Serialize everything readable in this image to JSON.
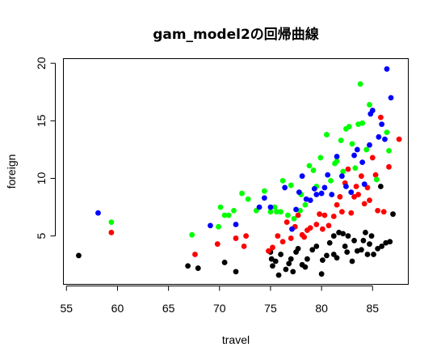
{
  "chart_data": {
    "type": "scatter",
    "title": "gam_model2の回帰曲線",
    "xlabel": "travel",
    "ylabel": "foreign",
    "xlim": [
      54.7,
      88.5
    ],
    "ylim": [
      0.8,
      20.4
    ],
    "xticks": [
      "55",
      "60",
      "65",
      "70",
      "75",
      "80",
      "85"
    ],
    "yticks": [
      "5",
      "10",
      "15",
      "20"
    ],
    "grid": false,
    "legend": "none",
    "series": [
      {
        "color": "#000000",
        "points": [
          [
            56.2,
            3.3
          ],
          [
            66.9,
            2.4
          ],
          [
            67.9,
            2.2
          ],
          [
            70.5,
            2.7
          ],
          [
            71.6,
            1.9
          ],
          [
            75.0,
            3.6
          ],
          [
            75.1,
            3.0
          ],
          [
            75.2,
            2.4
          ],
          [
            75.5,
            2.8
          ],
          [
            75.8,
            1.6
          ],
          [
            76.0,
            3.4
          ],
          [
            76.5,
            2.1
          ],
          [
            76.8,
            2.6
          ],
          [
            77.0,
            3.0
          ],
          [
            77.2,
            1.9
          ],
          [
            77.5,
            3.6
          ],
          [
            77.7,
            3.9
          ],
          [
            78.1,
            2.5
          ],
          [
            78.4,
            2.3
          ],
          [
            78.6,
            3.0
          ],
          [
            79.1,
            3.8
          ],
          [
            79.5,
            4.1
          ],
          [
            80.1,
            2.9
          ],
          [
            80.0,
            1.7
          ],
          [
            80.5,
            3.3
          ],
          [
            80.8,
            4.4
          ],
          [
            81.2,
            3.4
          ],
          [
            81.5,
            3.1
          ],
          [
            81.2,
            5.0
          ],
          [
            81.7,
            5.3
          ],
          [
            82.1,
            5.2
          ],
          [
            82.3,
            4.1
          ],
          [
            82.5,
            3.6
          ],
          [
            82.6,
            5.0
          ],
          [
            83.0,
            2.8
          ],
          [
            83.2,
            4.6
          ],
          [
            83.5,
            3.7
          ],
          [
            83.9,
            3.8
          ],
          [
            84.1,
            4.6
          ],
          [
            84.3,
            5.3
          ],
          [
            84.5,
            3.4
          ],
          [
            84.7,
            4.3
          ],
          [
            84.9,
            5.0
          ],
          [
            85.1,
            3.4
          ],
          [
            85.5,
            3.9
          ],
          [
            85.8,
            9.3
          ],
          [
            85.9,
            4.1
          ],
          [
            86.3,
            4.4
          ],
          [
            86.7,
            4.5
          ],
          [
            87.0,
            6.9
          ]
        ]
      },
      {
        "color": "#ff0000",
        "points": [
          [
            59.4,
            5.3
          ],
          [
            67.6,
            3.4
          ],
          [
            69.8,
            4.3
          ],
          [
            71.6,
            4.8
          ],
          [
            72.4,
            4.1
          ],
          [
            72.6,
            5.0
          ],
          [
            74.8,
            3.7
          ],
          [
            75.2,
            4.0
          ],
          [
            75.7,
            5.0
          ],
          [
            76.2,
            4.5
          ],
          [
            76.6,
            6.2
          ],
          [
            77.0,
            4.8
          ],
          [
            77.4,
            5.8
          ],
          [
            77.7,
            6.8
          ],
          [
            78.1,
            5.1
          ],
          [
            78.3,
            4.9
          ],
          [
            78.6,
            5.5
          ],
          [
            78.9,
            5.7
          ],
          [
            79.5,
            6.0
          ],
          [
            79.8,
            6.9
          ],
          [
            80.1,
            5.6
          ],
          [
            80.3,
            6.8
          ],
          [
            80.7,
            5.9
          ],
          [
            81.2,
            6.7
          ],
          [
            81.5,
            7.7
          ],
          [
            81.8,
            8.4
          ],
          [
            82.0,
            7.1
          ],
          [
            82.3,
            9.6
          ],
          [
            82.6,
            10.8
          ],
          [
            82.9,
            7.0
          ],
          [
            83.2,
            8.4
          ],
          [
            83.4,
            9.3
          ],
          [
            83.6,
            8.6
          ],
          [
            83.9,
            10.2
          ],
          [
            84.2,
            7.8
          ],
          [
            84.5,
            9.2
          ],
          [
            84.7,
            8.1
          ],
          [
            85.0,
            11.8
          ],
          [
            85.3,
            10.3
          ],
          [
            85.5,
            7.2
          ],
          [
            85.8,
            15.3
          ],
          [
            86.1,
            7.1
          ],
          [
            86.6,
            11.0
          ],
          [
            87.6,
            13.4
          ]
        ]
      },
      {
        "color": "#00ff00",
        "points": [
          [
            59.4,
            6.2
          ],
          [
            67.3,
            5.1
          ],
          [
            69.9,
            5.8
          ],
          [
            70.1,
            7.5
          ],
          [
            70.5,
            6.8
          ],
          [
            70.9,
            6.8
          ],
          [
            71.4,
            7.2
          ],
          [
            72.2,
            8.7
          ],
          [
            72.8,
            8.2
          ],
          [
            73.6,
            7.2
          ],
          [
            74.4,
            8.9
          ],
          [
            75.0,
            7.1
          ],
          [
            75.4,
            7.5
          ],
          [
            75.6,
            7.1
          ],
          [
            76.0,
            7.1
          ],
          [
            76.2,
            9.8
          ],
          [
            76.7,
            6.8
          ],
          [
            77.0,
            9.4
          ],
          [
            77.3,
            6.5
          ],
          [
            77.9,
            7.2
          ],
          [
            78.0,
            8.6
          ],
          [
            78.4,
            7.7
          ],
          [
            78.8,
            11.1
          ],
          [
            79.2,
            10.7
          ],
          [
            79.5,
            9.3
          ],
          [
            79.9,
            11.8
          ],
          [
            80.5,
            13.8
          ],
          [
            80.9,
            9.8
          ],
          [
            81.3,
            11.3
          ],
          [
            81.5,
            11.5
          ],
          [
            81.9,
            13.3
          ],
          [
            82.1,
            10.6
          ],
          [
            82.4,
            14.3
          ],
          [
            82.7,
            14.5
          ],
          [
            83.0,
            13.0
          ],
          [
            83.3,
            10.9
          ],
          [
            83.6,
            14.7
          ],
          [
            83.8,
            18.2
          ],
          [
            84.0,
            14.8
          ],
          [
            84.4,
            12.5
          ],
          [
            84.7,
            16.4
          ],
          [
            85.4,
            9.9
          ],
          [
            86.4,
            14.0
          ],
          [
            86.6,
            12.4
          ]
        ]
      },
      {
        "color": "#0000ff",
        "points": [
          [
            58.1,
            7.0
          ],
          [
            69.1,
            5.9
          ],
          [
            71.6,
            6.0
          ],
          [
            73.9,
            7.5
          ],
          [
            74.4,
            8.3
          ],
          [
            75.0,
            7.5
          ],
          [
            76.4,
            9.2
          ],
          [
            77.1,
            5.6
          ],
          [
            77.5,
            7.3
          ],
          [
            77.8,
            8.8
          ],
          [
            78.1,
            10.2
          ],
          [
            78.5,
            8.2
          ],
          [
            78.9,
            8.1
          ],
          [
            79.3,
            9.1
          ],
          [
            79.5,
            8.6
          ],
          [
            80.0,
            8.7
          ],
          [
            80.3,
            9.2
          ],
          [
            80.6,
            10.3
          ],
          [
            81.0,
            8.6
          ],
          [
            81.5,
            11.9
          ],
          [
            82.0,
            10.2
          ],
          [
            82.4,
            9.3
          ],
          [
            82.9,
            8.8
          ],
          [
            83.2,
            12.0
          ],
          [
            83.5,
            12.5
          ],
          [
            84.0,
            11.4
          ],
          [
            84.2,
            9.5
          ],
          [
            84.7,
            12.9
          ],
          [
            84.8,
            15.6
          ],
          [
            85.0,
            15.9
          ],
          [
            85.6,
            13.6
          ],
          [
            85.9,
            14.7
          ],
          [
            86.2,
            13.4
          ],
          [
            86.4,
            19.5
          ],
          [
            86.8,
            17.0
          ]
        ]
      }
    ]
  }
}
